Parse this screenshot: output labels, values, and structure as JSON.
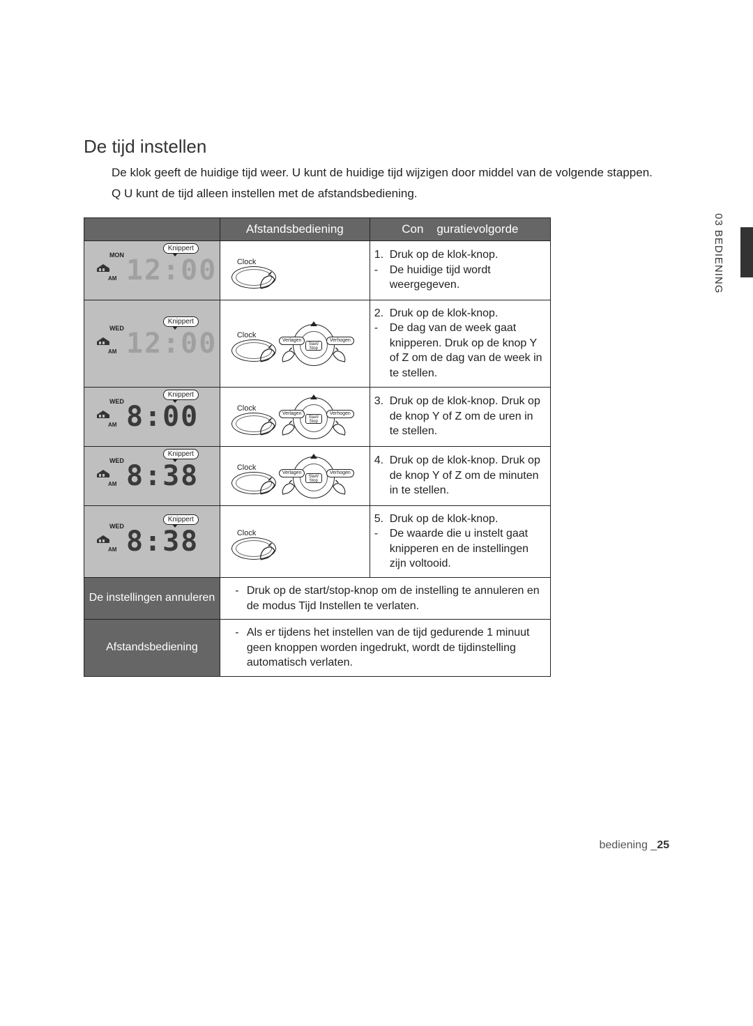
{
  "title": "De tijd instellen",
  "intro": "De klok geeft de huidige tijd weer. U kunt de huidige tijd wijzigen door middel van de volgende stappen.",
  "note_prefix": "Q",
  "note": "U kunt de tijd alleen instellen met de afstandsbediening.",
  "headers": {
    "display": "",
    "remote": "Afstandsbediening",
    "order": "Con    guratievolgorde"
  },
  "knippert": "Knippert",
  "remote_labels": {
    "clock": "Clock",
    "verlagen": "Verlagen",
    "verhogen": "Verhogen",
    "start_stop": "Start/\nStop"
  },
  "rows": [
    {
      "day": "MON",
      "am": "AM",
      "digits": "12:00",
      "ghost": true,
      "remote_type": "simple",
      "num": "1.",
      "text": "Druk op de klok-knop.",
      "dash_lines": [
        "De huidige tijd wordt weergegeven."
      ]
    },
    {
      "day": "WED",
      "am": "AM",
      "digits": "12:00",
      "ghost": true,
      "remote_type": "full",
      "num": "2.",
      "text": "Druk op de klok-knop.",
      "dash_lines": [
        "De dag van de week gaat knipperen. Druk op de knop Y of  Z om de dag van de week in te stellen."
      ]
    },
    {
      "day": "WED",
      "am": "AM",
      "digits": "8:00",
      "ghost": false,
      "remote_type": "full",
      "num": "3.",
      "text": "Druk op de klok-knop. Druk op de knop  Y of  Z om de uren in te stellen.",
      "dash_lines": []
    },
    {
      "day": "WED",
      "am": "AM",
      "digits": "8:38",
      "ghost": false,
      "remote_type": "full",
      "num": "4.",
      "text": "Druk op de klok-knop. Druk op de knop  Y of  Z om de minuten in te stellen.",
      "dash_lines": []
    },
    {
      "day": "WED",
      "am": "AM",
      "digits": "8:38",
      "ghost": false,
      "remote_type": "simple",
      "num": "5.",
      "text": "Druk op de klok-knop.",
      "dash_lines": [
        "De waarde die u instelt gaat knipperen en de instellingen zijn voltooid."
      ]
    }
  ],
  "cancel": {
    "label": "De instellingen annuleren",
    "text": "Druk op de start/stop-knop om de instelling te annuleren en de modus Tijd Instellen te verlaten."
  },
  "timeout": {
    "label": "Afstandsbediening",
    "text": "Als er tijdens het instellen van de tijd gedurende 1 minuut geen knoppen worden ingedrukt, wordt de tijdinstelling automatisch verlaten."
  },
  "side_tab": "03 BEDIENING",
  "footer_text": "bediening _",
  "footer_page": "25"
}
